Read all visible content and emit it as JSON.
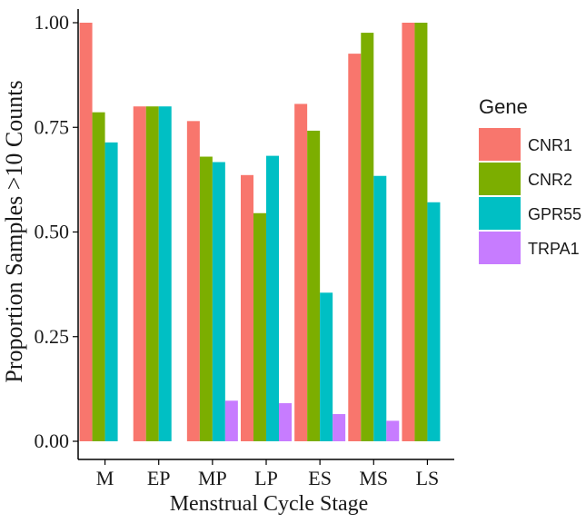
{
  "chart_data": {
    "type": "bar",
    "xlabel": "Menstrual Cycle Stage",
    "ylabel": "Proportion Samples >10 Counts",
    "categories": [
      "M",
      "EP",
      "MP",
      "LP",
      "ES",
      "MS",
      "LS"
    ],
    "ylim": [
      0,
      1.0
    ],
    "yticks": [
      "0.00",
      "0.25",
      "0.50",
      "0.75",
      "1.00"
    ],
    "ytick_values": [
      0,
      0.25,
      0.5,
      0.75,
      1.0
    ],
    "grid": false,
    "legend": {
      "title": "Gene",
      "placement": "right"
    },
    "series": [
      {
        "name": "CNR1",
        "color": "#F8766D",
        "values": [
          1.0,
          0.8,
          0.765,
          0.636,
          0.806,
          0.926,
          1.0
        ]
      },
      {
        "name": "CNR2",
        "color": "#7CAE00",
        "values": [
          0.786,
          0.8,
          0.68,
          0.545,
          0.742,
          0.976,
          1.0
        ]
      },
      {
        "name": "GPR55",
        "color": "#00BFC4",
        "values": [
          0.714,
          0.8,
          0.667,
          0.682,
          0.355,
          0.634,
          0.571
        ]
      },
      {
        "name": "TRPA1",
        "color": "#C77CFF",
        "values": [
          0,
          0,
          0.097,
          0.091,
          0.065,
          0.049,
          0
        ]
      }
    ]
  }
}
